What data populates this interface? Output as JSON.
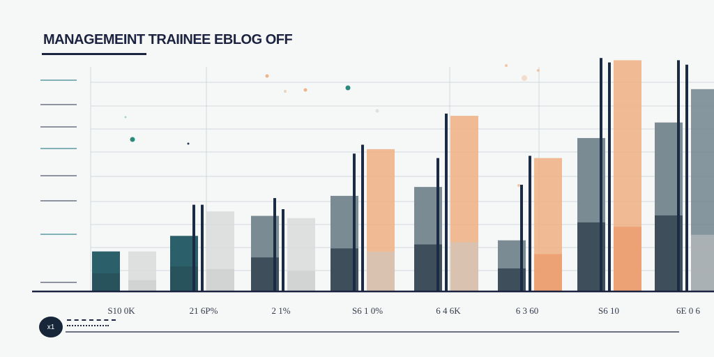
{
  "chart_data": {
    "type": "bar",
    "title": "MANAGEMEINT TRAIINEE EBLOG OFF",
    "categories": [
      "S10 0K",
      "21 6P%",
      "2 1%",
      "S6 1 0%",
      "6 4 6K",
      "6 3 60",
      "S6 10",
      "6E 0 6"
    ],
    "series": [
      {
        "name": "",
        "values": [
          18,
          25,
          34,
          43,
          47,
          23,
          69,
          76
        ]
      },
      {
        "name": "",
        "values": [
          18,
          36,
          33,
          64,
          79,
          60,
          104,
          91
        ]
      }
    ],
    "marker_lines": [
      [
        null,
        39,
        42,
        62,
        60,
        48,
        105,
        104
      ],
      [
        null,
        39,
        37,
        66,
        80,
        61,
        103,
        102
      ]
    ],
    "ylim": [
      0,
      106
    ],
    "grid": true,
    "xlabel": "",
    "ylabel": ""
  },
  "footer": {
    "avatar_label": "x1"
  },
  "colors": {
    "teal": "#2b5f69",
    "slate": "#7a8b94",
    "peach": "#f0b488",
    "light_gray": "#dcdcdc",
    "ink": "#1c2340",
    "grid": "#d4d8dc"
  }
}
